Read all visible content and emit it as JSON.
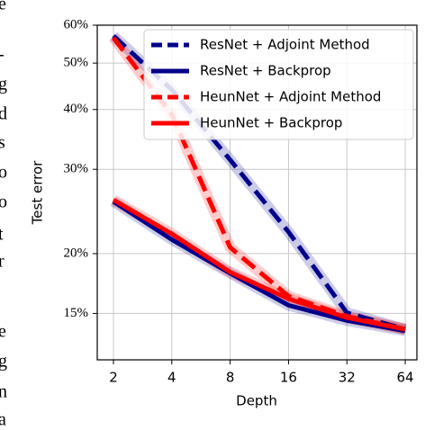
{
  "chart_data": {
    "type": "line",
    "xlabel": "Depth",
    "ylabel": "Test error",
    "x": [
      2,
      4,
      8,
      16,
      32,
      64
    ],
    "xlim": [
      1.65,
      73.5
    ],
    "xticks": [
      2,
      4,
      8,
      16,
      32,
      64
    ],
    "xscale": "log2",
    "ylim": [
      12,
      60
    ],
    "yscale": "log",
    "yticks": [
      {
        "value": 15,
        "label": "15%"
      },
      {
        "value": 20,
        "label": "20%"
      },
      {
        "value": 30,
        "label": "30%"
      },
      {
        "value": 40,
        "label": "40%"
      },
      {
        "value": 50,
        "label": "50%"
      },
      {
        "value": 60,
        "label": "60%"
      }
    ],
    "grid": true,
    "legend": "upper right",
    "series": [
      {
        "name": "ResNet + Adjoint Method",
        "color": "#00008b",
        "dashed": true,
        "values": [
          57,
          44,
          31.4,
          22.2,
          15.05,
          13.9
        ]
      },
      {
        "name": "ResNet + Backprop",
        "color": "#00008b",
        "dashed": false,
        "values": [
          25.7,
          21.4,
          18.2,
          15.6,
          14.5,
          13.8
        ]
      },
      {
        "name": "HeunNet + Adjoint Method",
        "color": "#ff0000",
        "dashed": true,
        "values": [
          56.5,
          39,
          20.6,
          16.3,
          14.8,
          13.9
        ]
      },
      {
        "name": "HeunNet + Backprop",
        "color": "#ff0000",
        "dashed": false,
        "values": [
          25.9,
          22,
          18.3,
          16.1,
          14.7,
          13.9
        ]
      }
    ]
  },
  "side_text": [
    "e",
    "-",
    "g",
    "d",
    "s",
    "o",
    "o",
    "t",
    "r",
    "e",
    "g",
    "n",
    "a"
  ]
}
